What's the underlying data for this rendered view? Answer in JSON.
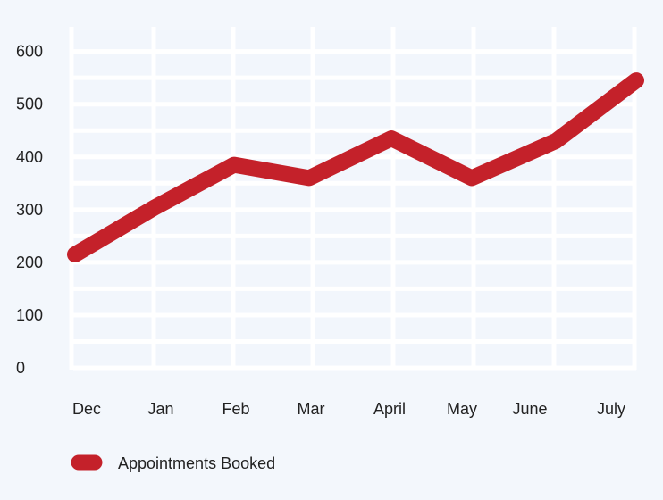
{
  "chart_data": {
    "type": "line",
    "categories": [
      "Dec",
      "Jan",
      "Feb",
      "Mar",
      "April",
      "May",
      "June",
      "July"
    ],
    "series": [
      {
        "name": "Appointments Booked",
        "values": [
          215,
          305,
          385,
          360,
          435,
          360,
          430,
          545
        ],
        "color": "#c4212a"
      }
    ],
    "ylim": [
      0,
      640
    ],
    "yticks": [
      0,
      100,
      200,
      300,
      400,
      500,
      600
    ],
    "grid": true,
    "legend_placement": "bottom-left",
    "colors": {
      "plot_background": "#f2f6fc",
      "grid": "#ffffff",
      "text": "#222222"
    }
  }
}
